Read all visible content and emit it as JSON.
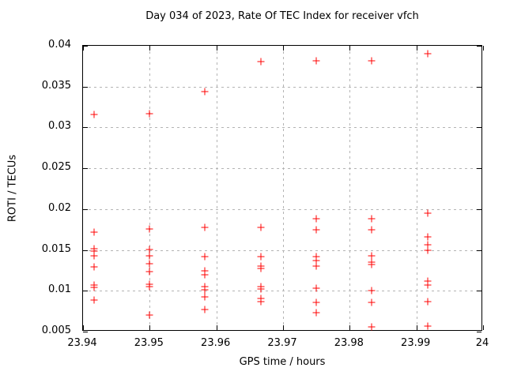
{
  "chart_data": {
    "type": "scatter",
    "title": "Day 034 of 2023, Rate Of TEC Index for receiver vfch",
    "xlabel": "GPS time / hours",
    "ylabel": "ROTI / TECUs",
    "xlim": [
      23.94,
      24
    ],
    "ylim": [
      0.005,
      0.04
    ],
    "xticks": [
      23.94,
      23.95,
      23.96,
      23.97,
      23.98,
      23.99,
      24
    ],
    "xtick_labels": [
      "23.94",
      "23.95",
      "23.96",
      "23.97",
      "23.98",
      "23.99",
      "24"
    ],
    "yticks": [
      0.005,
      0.01,
      0.015,
      0.02,
      0.025,
      0.03,
      0.035,
      0.04
    ],
    "ytick_labels": [
      "0.005",
      "0.01",
      "0.015",
      "0.02",
      "0.025",
      "0.03",
      "0.035",
      "0.04"
    ],
    "grid": true,
    "legend": "none",
    "marker": "plus",
    "marker_color": "#ff0000",
    "grid_color": "#b4b4b4",
    "frame_color": "#000000",
    "background_color": "#ffffff",
    "series": [
      {
        "name": "ROTI",
        "points": [
          [
            23.9417,
            0.0316
          ],
          [
            23.9417,
            0.0172
          ],
          [
            23.9417,
            0.0152
          ],
          [
            23.9417,
            0.0149
          ],
          [
            23.9417,
            0.0143
          ],
          [
            23.9417,
            0.0129
          ],
          [
            23.9417,
            0.0107
          ],
          [
            23.9417,
            0.0104
          ],
          [
            23.9417,
            0.0089
          ],
          [
            23.95,
            0.0317
          ],
          [
            23.95,
            0.0176
          ],
          [
            23.95,
            0.0151
          ],
          [
            23.95,
            0.0143
          ],
          [
            23.95,
            0.0133
          ],
          [
            23.95,
            0.0123
          ],
          [
            23.95,
            0.0108
          ],
          [
            23.95,
            0.0105
          ],
          [
            23.95,
            0.007
          ],
          [
            23.9583,
            0.0344
          ],
          [
            23.9583,
            0.0178
          ],
          [
            23.9583,
            0.0142
          ],
          [
            23.9583,
            0.0124
          ],
          [
            23.9583,
            0.012
          ],
          [
            23.9583,
            0.0105
          ],
          [
            23.9583,
            0.0101
          ],
          [
            23.9583,
            0.0093
          ],
          [
            23.9583,
            0.0077
          ],
          [
            23.9667,
            0.0381
          ],
          [
            23.9667,
            0.0178
          ],
          [
            23.9667,
            0.0142
          ],
          [
            23.9667,
            0.013
          ],
          [
            23.9667,
            0.0127
          ],
          [
            23.9667,
            0.0105
          ],
          [
            23.9667,
            0.0102
          ],
          [
            23.9667,
            0.0091
          ],
          [
            23.9667,
            0.0087
          ],
          [
            23.975,
            0.0382
          ],
          [
            23.975,
            0.0188
          ],
          [
            23.975,
            0.0175
          ],
          [
            23.975,
            0.0142
          ],
          [
            23.975,
            0.0137
          ],
          [
            23.975,
            0.013
          ],
          [
            23.975,
            0.0103
          ],
          [
            23.975,
            0.0086
          ],
          [
            23.975,
            0.0073
          ],
          [
            23.9833,
            0.0382
          ],
          [
            23.9833,
            0.0188
          ],
          [
            23.9833,
            0.0175
          ],
          [
            23.9833,
            0.0143
          ],
          [
            23.9833,
            0.0135
          ],
          [
            23.9833,
            0.0132
          ],
          [
            23.9833,
            0.01
          ],
          [
            23.9833,
            0.0086
          ],
          [
            23.9833,
            0.0056
          ],
          [
            23.9917,
            0.039
          ],
          [
            23.9917,
            0.0195
          ],
          [
            23.9917,
            0.0166
          ],
          [
            23.9917,
            0.0156
          ],
          [
            23.9917,
            0.015
          ],
          [
            23.9917,
            0.0112
          ],
          [
            23.9917,
            0.0107
          ],
          [
            23.9917,
            0.0087
          ],
          [
            23.9917,
            0.0057
          ]
        ]
      }
    ]
  }
}
